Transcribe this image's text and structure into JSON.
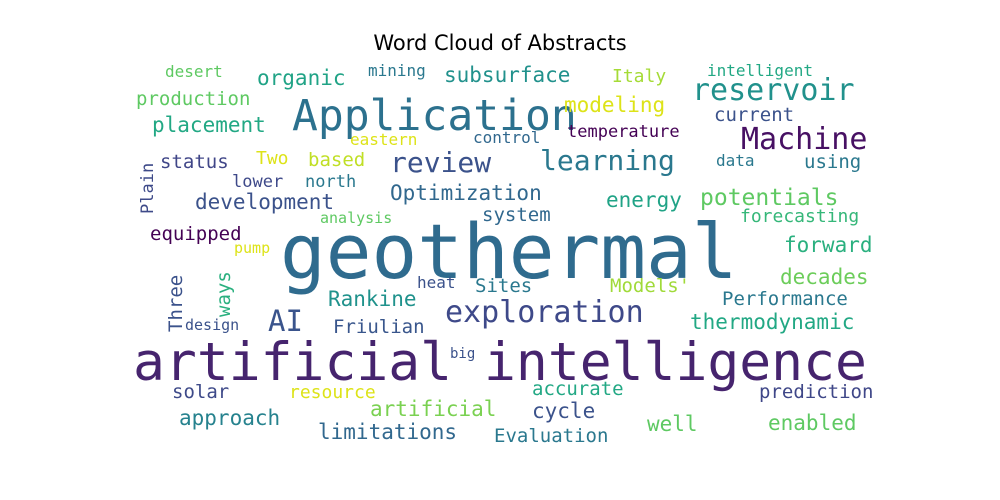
{
  "chart_data": {
    "type": "wordcloud",
    "title": "Word Cloud of Abstracts",
    "words": [
      {
        "text": "geothermal",
        "weight": 1.0,
        "color": "#2f6b8e",
        "orientation": "horizontal"
      },
      {
        "text": "artificial intelligence",
        "weight": 0.8,
        "color": "#46246e",
        "orientation": "horizontal"
      },
      {
        "text": "Application",
        "weight": 0.6,
        "color": "#2c718e",
        "orientation": "horizontal"
      },
      {
        "text": "Machine",
        "weight": 0.45,
        "color": "#471063",
        "orientation": "horizontal"
      },
      {
        "text": "reservoir",
        "weight": 0.45,
        "color": "#21918c",
        "orientation": "horizontal"
      },
      {
        "text": "learning",
        "weight": 0.43,
        "color": "#2a788e",
        "orientation": "horizontal"
      },
      {
        "text": "exploration",
        "weight": 0.43,
        "color": "#3e4989",
        "orientation": "horizontal"
      },
      {
        "text": "review",
        "weight": 0.38,
        "color": "#3b528b",
        "orientation": "horizontal"
      },
      {
        "text": "AI",
        "weight": 0.38,
        "color": "#3a548c",
        "orientation": "horizontal"
      },
      {
        "text": "potentials",
        "weight": 0.3,
        "color": "#5ec962",
        "orientation": "horizontal"
      },
      {
        "text": "Optimization",
        "weight": 0.28,
        "color": "#31688e",
        "orientation": "horizontal"
      },
      {
        "text": "development",
        "weight": 0.28,
        "color": "#3b528b",
        "orientation": "horizontal"
      },
      {
        "text": "energy",
        "weight": 0.28,
        "color": "#20a386",
        "orientation": "horizontal"
      },
      {
        "text": "subsurface",
        "weight": 0.28,
        "color": "#21918c",
        "orientation": "horizontal"
      },
      {
        "text": "modeling",
        "weight": 0.28,
        "color": "#dde318",
        "orientation": "horizontal"
      },
      {
        "text": "thermodynamic",
        "weight": 0.26,
        "color": "#22a884",
        "orientation": "horizontal"
      },
      {
        "text": "organic",
        "weight": 0.26,
        "color": "#20a386",
        "orientation": "horizontal"
      },
      {
        "text": "placement",
        "weight": 0.26,
        "color": "#22a884",
        "orientation": "horizontal"
      },
      {
        "text": "Rankine",
        "weight": 0.26,
        "color": "#20928c",
        "orientation": "horizontal"
      },
      {
        "text": "approach",
        "weight": 0.26,
        "color": "#26828e",
        "orientation": "horizontal"
      },
      {
        "text": "artificial",
        "weight": 0.26,
        "color": "#7ad151",
        "orientation": "horizontal"
      },
      {
        "text": "limitations",
        "weight": 0.26,
        "color": "#31688e",
        "orientation": "horizontal"
      },
      {
        "text": "enabled",
        "weight": 0.26,
        "color": "#5ec962",
        "orientation": "horizontal"
      },
      {
        "text": "well",
        "weight": 0.26,
        "color": "#5ec962",
        "orientation": "horizontal"
      },
      {
        "text": "cycle",
        "weight": 0.26,
        "color": "#3b528b",
        "orientation": "horizontal"
      },
      {
        "text": "forward",
        "weight": 0.26,
        "color": "#2ab07f",
        "orientation": "horizontal"
      },
      {
        "text": "decades",
        "weight": 0.26,
        "color": "#6ccd5a",
        "orientation": "horizontal"
      },
      {
        "text": "status",
        "weight": 0.25,
        "color": "#404688",
        "orientation": "horizontal"
      },
      {
        "text": "Sites",
        "weight": 0.25,
        "color": "#2a788e",
        "orientation": "horizontal"
      },
      {
        "text": "current",
        "weight": 0.25,
        "color": "#3b528b",
        "orientation": "horizontal"
      },
      {
        "text": "Performance",
        "weight": 0.24,
        "color": "#2a788e",
        "orientation": "horizontal"
      },
      {
        "text": "equipped",
        "weight": 0.24,
        "color": "#440154",
        "orientation": "horizontal"
      },
      {
        "text": "system",
        "weight": 0.24,
        "color": "#31688e",
        "orientation": "horizontal"
      },
      {
        "text": "prediction",
        "weight": 0.24,
        "color": "#3f4788",
        "orientation": "horizontal"
      },
      {
        "text": "production",
        "weight": 0.24,
        "color": "#5ec962",
        "orientation": "horizontal"
      },
      {
        "text": "Evaluation",
        "weight": 0.24,
        "color": "#2a788e",
        "orientation": "horizontal"
      },
      {
        "text": "accurate",
        "weight": 0.24,
        "color": "#22a884",
        "orientation": "horizontal"
      },
      {
        "text": "Friulian",
        "weight": 0.23,
        "color": "#39568c",
        "orientation": "horizontal"
      },
      {
        "text": "solar",
        "weight": 0.23,
        "color": "#3e4a89",
        "orientation": "horizontal"
      },
      {
        "text": "using",
        "weight": 0.23,
        "color": "#2a788e",
        "orientation": "horizontal"
      },
      {
        "text": "Models'",
        "weight": 0.23,
        "color": "#a0da39",
        "orientation": "horizontal"
      },
      {
        "text": "based",
        "weight": 0.23,
        "color": "#c0df25",
        "orientation": "horizontal"
      },
      {
        "text": "forecasting",
        "weight": 0.22,
        "color": "#35b779",
        "orientation": "horizontal"
      },
      {
        "text": "resource",
        "weight": 0.22,
        "color": "#dde318",
        "orientation": "horizontal"
      },
      {
        "text": "Italy",
        "weight": 0.22,
        "color": "#a5db36",
        "orientation": "horizontal"
      },
      {
        "text": "temperature",
        "weight": 0.21,
        "color": "#440154",
        "orientation": "horizontal"
      },
      {
        "text": "Two",
        "weight": 0.21,
        "color": "#dde318",
        "orientation": "horizontal"
      },
      {
        "text": "north",
        "weight": 0.21,
        "color": "#2a788e",
        "orientation": "horizontal"
      },
      {
        "text": "lower",
        "weight": 0.2,
        "color": "#3e4989",
        "orientation": "horizontal"
      },
      {
        "text": "intelligent",
        "weight": 0.2,
        "color": "#22a884",
        "orientation": "horizontal"
      },
      {
        "text": "eastern",
        "weight": 0.2,
        "color": "#dde318",
        "orientation": "horizontal"
      },
      {
        "text": "control",
        "weight": 0.19,
        "color": "#31688e",
        "orientation": "horizontal"
      },
      {
        "text": "mining",
        "weight": 0.19,
        "color": "#2a788e",
        "orientation": "horizontal"
      },
      {
        "text": "heat",
        "weight": 0.19,
        "color": "#3b528b",
        "orientation": "horizontal"
      },
      {
        "text": "data",
        "weight": 0.19,
        "color": "#2a788e",
        "orientation": "horizontal"
      },
      {
        "text": "desert",
        "weight": 0.19,
        "color": "#5ec962",
        "orientation": "horizontal"
      },
      {
        "text": "design",
        "weight": 0.18,
        "color": "#3b528b",
        "orientation": "horizontal"
      },
      {
        "text": "analysis",
        "weight": 0.18,
        "color": "#5ec962",
        "orientation": "horizontal"
      },
      {
        "text": "big",
        "weight": 0.17,
        "color": "#3b528b",
        "orientation": "horizontal"
      },
      {
        "text": "pump",
        "weight": 0.17,
        "color": "#dde318",
        "orientation": "horizontal"
      },
      {
        "text": "ways",
        "weight": 0.23,
        "color": "#2ab07f",
        "orientation": "vertical"
      },
      {
        "text": "Three",
        "weight": 0.23,
        "color": "#3b528b",
        "orientation": "vertical"
      },
      {
        "text": "Plain",
        "weight": 0.2,
        "color": "#3e4a89",
        "orientation": "vertical"
      }
    ]
  }
}
